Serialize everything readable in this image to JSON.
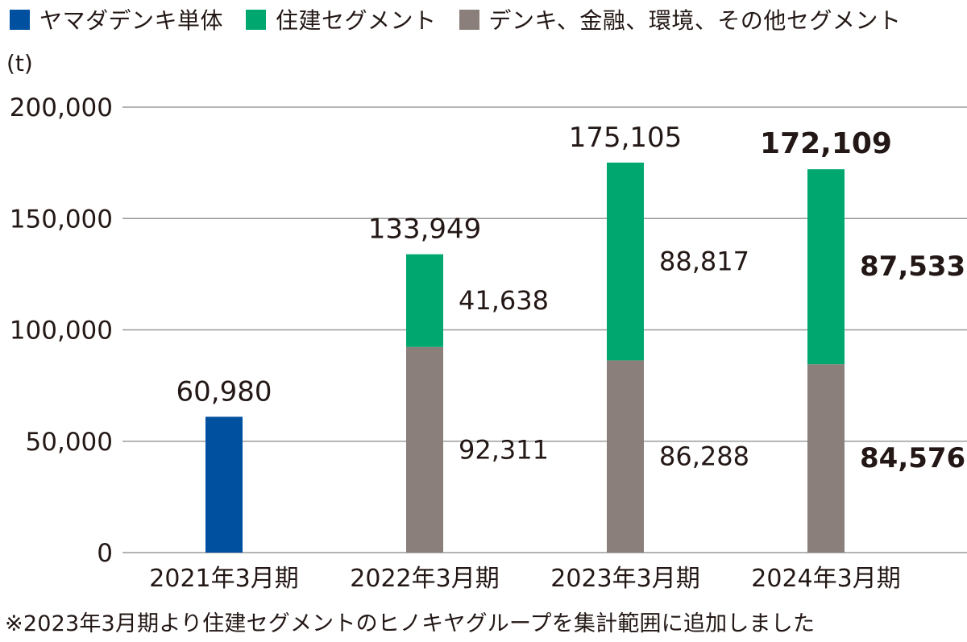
{
  "legend": [
    {
      "label": "ヤマダデンキ単体",
      "color": "#0050a0"
    },
    {
      "label": "住建セグメント",
      "color": "#00a870"
    },
    {
      "label": "デンキ、金融、環境、その他セグメント",
      "color": "#8a7f7a"
    }
  ],
  "unit": "(t)",
  "footnote": "※2023年3月期より住建セグメントのヒノキヤグループを集計範囲に追加しました",
  "chart_data": {
    "type": "bar",
    "stacked": true,
    "categories": [
      "2021年3月期",
      "2022年3月期",
      "2023年3月期",
      "2024年3月期"
    ],
    "series": [
      {
        "name": "ヤマダデンキ単体",
        "color": "#0050a0",
        "values": [
          60980,
          null,
          null,
          null
        ],
        "labels": [
          "",
          "",
          "",
          ""
        ]
      },
      {
        "name": "デンキ、金融、環境、その他セグメント",
        "color": "#8a7f7a",
        "values": [
          null,
          92311,
          86288,
          84576
        ],
        "labels": [
          "",
          "92,311",
          "86,288",
          "84,576"
        ]
      },
      {
        "name": "住建セグメント",
        "color": "#00a870",
        "values": [
          null,
          41638,
          88817,
          87533
        ],
        "labels": [
          "",
          "41,638",
          "88,817",
          "87,533"
        ]
      }
    ],
    "totals": [
      60980,
      133949,
      175105,
      172109
    ],
    "total_labels": [
      "60,980",
      "133,949",
      "175,105",
      "172,109"
    ],
    "y_ticks": [
      0,
      50000,
      100000,
      150000,
      200000
    ],
    "y_tick_labels": [
      "0",
      "50,000",
      "100,000",
      "150,000",
      "200,000"
    ],
    "ylim": [
      0,
      200000
    ],
    "grid": true
  }
}
